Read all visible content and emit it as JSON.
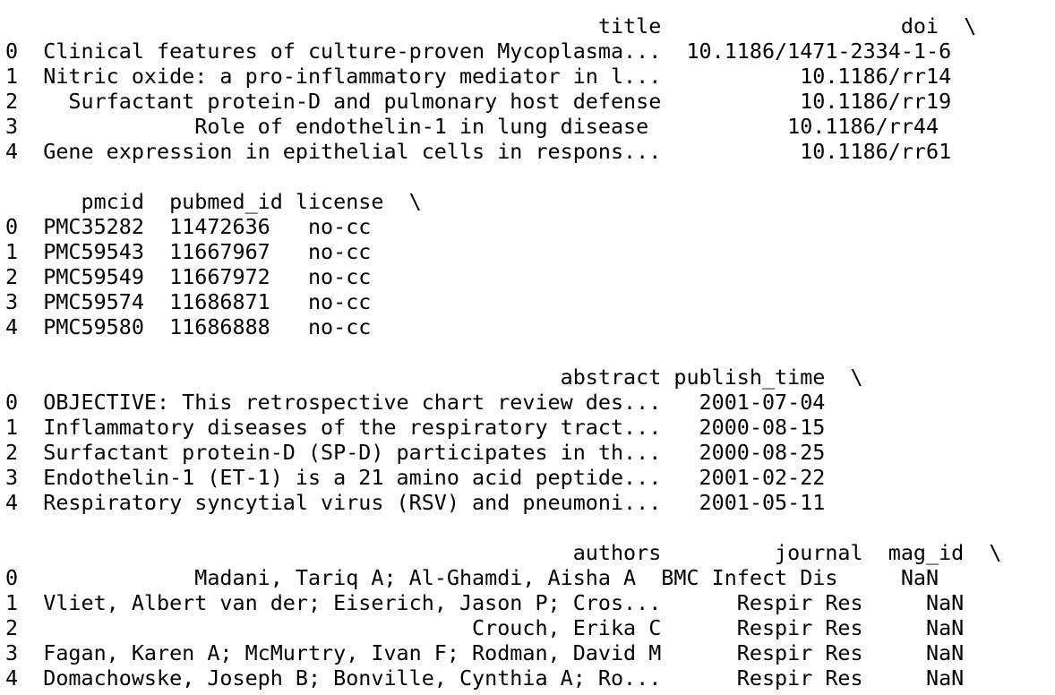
{
  "dataframe_output": {
    "blocks": [
      {
        "header": "                                               title                   doi  \\",
        "rows": [
          "0  Clinical features of culture-proven Mycoplasma...  10.1186/1471-2334-1-6",
          "1  Nitric oxide: a pro-inflammatory mediator in l...           10.1186/rr14",
          "2    Surfactant protein-D and pulmonary host defense           10.1186/rr19",
          "3              Role of endothelin-1 in lung disease           10.1186/rr44",
          "4  Gene expression in epithelial cells in respons...           10.1186/rr61"
        ]
      },
      {
        "header": "      pmcid  pubmed_id license  \\",
        "rows": [
          "0  PMC35282  11472636   no-cc",
          "1  PMC59543  11667967   no-cc",
          "2  PMC59549  11667972   no-cc",
          "3  PMC59574  11686871   no-cc",
          "4  PMC59580  11686888   no-cc"
        ]
      },
      {
        "header": "                                            abstract publish_time  \\",
        "rows": [
          "0  OBJECTIVE: This retrospective chart review des...   2001-07-04",
          "1  Inflammatory diseases of the respiratory tract...   2000-08-15",
          "2  Surfactant protein-D (SP-D) participates in th...   2000-08-25",
          "3  Endothelin-1 (ET-1) is a 21 amino acid peptide...   2001-02-22",
          "4  Respiratory syncytial virus (RSV) and pneumoni...   2001-05-11"
        ]
      },
      {
        "header": "                                             authors         journal  mag_id  \\",
        "rows": [
          "0              Madani, Tariq A; Al-Ghamdi, Aisha A  BMC Infect Dis     NaN",
          "1  Vliet, Albert van der; Eiserich, Jason P; Cros...      Respir Res     NaN",
          "2                                    Crouch, Erika C      Respir Res     NaN",
          "3  Fagan, Karen A; McMurtry, Ivan F; Rodman, David M      Respir Res     NaN",
          "4  Domachowske, Joseph B; Bonville, Cynthia A; Ro...      Respir Res     NaN"
        ]
      }
    ]
  }
}
